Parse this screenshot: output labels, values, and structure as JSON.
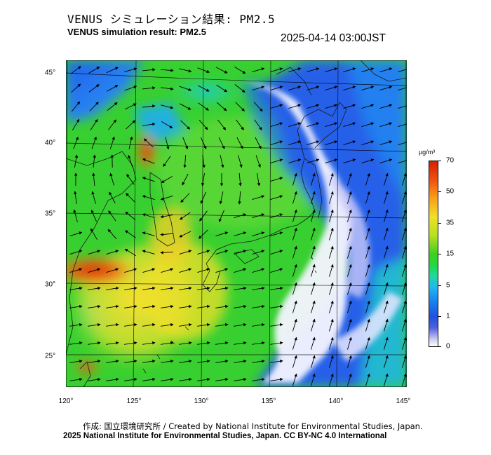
{
  "title": {
    "jp": "VENUS シミュレーション結果: PM2.5",
    "en": "VENUS simulation result: PM2.5",
    "timestamp": "2025-04-14 03:00JST"
  },
  "axes": {
    "lon_ticks": [
      "120°",
      "125°",
      "130°",
      "135°",
      "140°",
      "145°"
    ],
    "lat_ticks": [
      "45°",
      "40°",
      "35°",
      "30°",
      "25°"
    ]
  },
  "colorbar": {
    "unit": "µg/m³",
    "labels": [
      "70",
      "50",
      "35",
      "15",
      "5",
      "1",
      "0"
    ]
  },
  "credits": {
    "line1": "作成: 国立環境研究所 / Created by National Institute for Environmental Studies, Japan.",
    "line2": "2025 National Institute for Environmental Studies, Japan. CC BY-NC 4.0 International"
  },
  "colors": {
    "very_high": "#d42000",
    "high": "#f8a018",
    "moderate": "#f0e028",
    "mid": "#40d020",
    "low": "#20b8f0",
    "very_low": "#2050e0",
    "clean": "#ffffff"
  }
}
